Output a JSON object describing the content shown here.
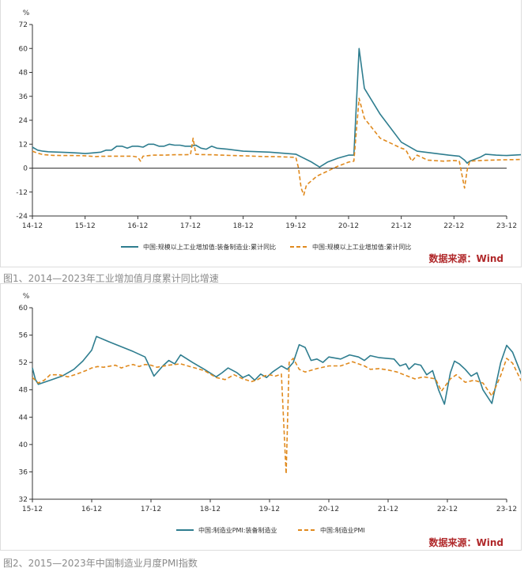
{
  "colors": {
    "equipment": "#2e7d8f",
    "overall": "#e08a1e",
    "source": "#b0282a",
    "caption": "#8a8a8a"
  },
  "figure1": {
    "caption": "图1、2014—2023年工业增加值月度累计同比增速",
    "source": "数据来源：Wind",
    "chart_data": {
      "type": "line",
      "unit": "%",
      "y_ticks": [
        72,
        60,
        48,
        36,
        24,
        12,
        0,
        -12,
        -24
      ],
      "ylim": [
        -24,
        72
      ],
      "x_ticks": [
        "14-12",
        "15-12",
        "16-12",
        "17-12",
        "18-12",
        "19-12",
        "20-12",
        "21-12",
        "22-12",
        "23-12"
      ],
      "grid": false,
      "legend_position": "bottom",
      "series": [
        {
          "name": "中国:规模以上工业增加值:装备制造业:累计同比",
          "style": "solid",
          "points": [
            [
              0.0,
              10.5
            ],
            [
              0.1,
              9.0
            ],
            [
              0.2,
              8.5
            ],
            [
              0.3,
              8.2
            ],
            [
              0.5,
              8.0
            ],
            [
              0.7,
              7.8
            ],
            [
              0.9,
              7.5
            ],
            [
              1.0,
              7.3
            ],
            [
              1.1,
              7.5
            ],
            [
              1.3,
              8.0
            ],
            [
              1.4,
              9.0
            ],
            [
              1.5,
              9.0
            ],
            [
              1.6,
              11.0
            ],
            [
              1.7,
              11.0
            ],
            [
              1.8,
              10.0
            ],
            [
              1.9,
              11.0
            ],
            [
              2.0,
              11.0
            ],
            [
              2.1,
              10.5
            ],
            [
              2.2,
              12.0
            ],
            [
              2.3,
              12.0
            ],
            [
              2.4,
              11.0
            ],
            [
              2.5,
              11.0
            ],
            [
              2.6,
              12.0
            ],
            [
              2.7,
              11.5
            ],
            [
              2.8,
              11.5
            ],
            [
              2.9,
              11.0
            ],
            [
              3.0,
              11.0
            ],
            [
              3.1,
              11.5
            ],
            [
              3.2,
              10.0
            ],
            [
              3.3,
              9.5
            ],
            [
              3.4,
              11.0
            ],
            [
              3.5,
              10.0
            ],
            [
              3.7,
              9.5
            ],
            [
              4.0,
              8.5
            ],
            [
              4.5,
              8.0
            ],
            [
              5.0,
              7.0
            ],
            [
              5.3,
              3.0
            ],
            [
              5.45,
              0.5
            ],
            [
              5.6,
              3.0
            ],
            [
              5.8,
              5.0
            ],
            [
              6.0,
              6.5
            ],
            [
              6.1,
              6.5
            ],
            [
              6.2,
              60.0
            ],
            [
              6.3,
              40.0
            ],
            [
              6.6,
              27.0
            ],
            [
              7.0,
              13.0
            ],
            [
              7.3,
              8.5
            ],
            [
              7.6,
              7.5
            ],
            [
              7.9,
              6.5
            ],
            [
              8.1,
              6.0
            ],
            [
              8.2,
              4.0
            ],
            [
              8.25,
              2.5
            ],
            [
              8.3,
              3.5
            ],
            [
              8.5,
              5.5
            ],
            [
              8.6,
              7.0
            ],
            [
              8.8,
              6.5
            ],
            [
              9.0,
              6.3
            ],
            [
              9.3,
              6.8
            ],
            [
              9.4,
              7.0
            ]
          ]
        },
        {
          "name": "中国:规模以上工业增加值:累计同比",
          "style": "dashed",
          "points": [
            [
              0.0,
              8.5
            ],
            [
              0.1,
              7.5
            ],
            [
              0.2,
              6.8
            ],
            [
              0.4,
              6.4
            ],
            [
              0.6,
              6.3
            ],
            [
              0.8,
              6.3
            ],
            [
              1.0,
              6.2
            ],
            [
              1.1,
              6.0
            ],
            [
              1.2,
              5.8
            ],
            [
              1.3,
              5.9
            ],
            [
              1.5,
              6.0
            ],
            [
              1.7,
              6.0
            ],
            [
              1.9,
              6.0
            ],
            [
              2.0,
              5.5
            ],
            [
              2.05,
              3.5
            ],
            [
              2.1,
              6.0
            ],
            [
              2.3,
              6.5
            ],
            [
              2.5,
              6.5
            ],
            [
              2.7,
              6.7
            ],
            [
              2.9,
              6.7
            ],
            [
              3.0,
              6.8
            ],
            [
              3.05,
              15.0
            ],
            [
              3.1,
              7.0
            ],
            [
              3.2,
              6.8
            ],
            [
              3.4,
              6.7
            ],
            [
              3.6,
              6.5
            ],
            [
              3.8,
              6.3
            ],
            [
              4.0,
              6.2
            ],
            [
              4.2,
              6.0
            ],
            [
              4.4,
              5.8
            ],
            [
              4.6,
              5.8
            ],
            [
              4.8,
              5.6
            ],
            [
              5.0,
              5.4
            ],
            [
              5.05,
              0.0
            ],
            [
              5.1,
              -10.0
            ],
            [
              5.15,
              -13.5
            ],
            [
              5.2,
              -8.5
            ],
            [
              5.4,
              -4.0
            ],
            [
              5.6,
              -1.5
            ],
            [
              5.8,
              1.0
            ],
            [
              6.0,
              3.0
            ],
            [
              6.1,
              3.5
            ],
            [
              6.2,
              35.0
            ],
            [
              6.3,
              25.0
            ],
            [
              6.6,
              15.0
            ],
            [
              7.0,
              10.0
            ],
            [
              7.05,
              9.6
            ],
            [
              7.1,
              8.5
            ],
            [
              7.2,
              3.5
            ],
            [
              7.3,
              6.5
            ],
            [
              7.5,
              4.0
            ],
            [
              7.8,
              3.5
            ],
            [
              8.0,
              3.8
            ],
            [
              8.1,
              3.6
            ],
            [
              8.2,
              -10.0
            ],
            [
              8.25,
              -1.0
            ],
            [
              8.3,
              3.5
            ],
            [
              8.5,
              3.8
            ],
            [
              8.7,
              4.0
            ],
            [
              9.0,
              4.2
            ],
            [
              9.2,
              4.3
            ],
            [
              9.4,
              4.5
            ]
          ]
        }
      ]
    }
  },
  "figure2": {
    "caption": "图2、2015—2023年中国制造业月度PMI指数",
    "source": "数据来源：Wind",
    "chart_data": {
      "type": "line",
      "unit": "%",
      "y_ticks": [
        60,
        56,
        52,
        48,
        44,
        40,
        36,
        32
      ],
      "ylim": [
        32,
        60
      ],
      "x_ticks": [
        "15-12",
        "16-12",
        "17-12",
        "18-12",
        "19-12",
        "20-12",
        "21-12",
        "22-12",
        "23-12"
      ],
      "grid": false,
      "legend_position": "bottom",
      "series": [
        {
          "name": "中国:制造业PMI:装备制造业",
          "style": "solid",
          "points": [
            [
              0.0,
              51.2
            ],
            [
              0.05,
              49.5
            ],
            [
              0.1,
              48.8
            ],
            [
              0.3,
              49.4
            ],
            [
              0.5,
              50.0
            ],
            [
              0.7,
              51.0
            ],
            [
              0.85,
              52.2
            ],
            [
              1.0,
              53.8
            ],
            [
              1.08,
              55.8
            ],
            [
              1.3,
              55.0
            ],
            [
              1.5,
              54.3
            ],
            [
              1.7,
              53.6
            ],
            [
              1.9,
              52.8
            ],
            [
              2.05,
              50.0
            ],
            [
              2.2,
              51.5
            ],
            [
              2.3,
              52.3
            ],
            [
              2.4,
              51.8
            ],
            [
              2.5,
              53.1
            ],
            [
              2.7,
              52.0
            ],
            [
              2.9,
              51.0
            ],
            [
              3.1,
              49.9
            ],
            [
              3.2,
              50.5
            ],
            [
              3.3,
              51.2
            ],
            [
              3.45,
              50.5
            ],
            [
              3.55,
              49.8
            ],
            [
              3.65,
              50.2
            ],
            [
              3.75,
              49.4
            ],
            [
              3.85,
              50.3
            ],
            [
              3.95,
              49.8
            ],
            [
              4.05,
              50.6
            ],
            [
              4.2,
              51.5
            ],
            [
              4.3,
              51.0
            ],
            [
              4.4,
              52.0
            ],
            [
              4.5,
              54.6
            ],
            [
              4.6,
              54.2
            ],
            [
              4.7,
              52.3
            ],
            [
              4.8,
              52.5
            ],
            [
              4.9,
              52.0
            ],
            [
              5.0,
              52.8
            ],
            [
              5.2,
              52.5
            ],
            [
              5.35,
              53.1
            ],
            [
              5.5,
              52.8
            ],
            [
              5.6,
              52.3
            ],
            [
              5.7,
              53.0
            ],
            [
              5.85,
              52.7
            ],
            [
              6.1,
              52.5
            ],
            [
              6.2,
              51.5
            ],
            [
              6.3,
              51.8
            ],
            [
              6.35,
              51.0
            ],
            [
              6.45,
              51.8
            ],
            [
              6.55,
              51.6
            ],
            [
              6.65,
              50.2
            ],
            [
              6.75,
              50.8
            ],
            [
              6.85,
              48.0
            ],
            [
              6.95,
              45.9
            ],
            [
              7.05,
              50.5
            ],
            [
              7.12,
              52.2
            ],
            [
              7.2,
              51.8
            ],
            [
              7.3,
              51.0
            ],
            [
              7.4,
              50.0
            ],
            [
              7.5,
              50.5
            ],
            [
              7.6,
              48.0
            ],
            [
              7.75,
              46.0
            ],
            [
              7.9,
              52.0
            ],
            [
              8.0,
              54.5
            ],
            [
              8.1,
              53.5
            ],
            [
              8.25,
              50.2
            ],
            [
              8.4,
              51.0
            ],
            [
              8.6,
              50.8
            ],
            [
              8.75,
              50.6
            ],
            [
              9.0,
              51.6
            ],
            [
              9.1,
              50.3
            ]
          ]
        },
        {
          "name": "中国:制造业PMI",
          "style": "dashed",
          "points": [
            [
              0.0,
              49.8
            ],
            [
              0.1,
              49.0
            ],
            [
              0.2,
              49.4
            ],
            [
              0.3,
              50.2
            ],
            [
              0.45,
              50.2
            ],
            [
              0.6,
              49.9
            ],
            [
              0.75,
              50.3
            ],
            [
              0.9,
              50.8
            ],
            [
              1.0,
              51.2
            ],
            [
              1.1,
              51.4
            ],
            [
              1.2,
              51.3
            ],
            [
              1.4,
              51.6
            ],
            [
              1.5,
              51.2
            ],
            [
              1.6,
              51.5
            ],
            [
              1.7,
              51.7
            ],
            [
              1.8,
              51.4
            ],
            [
              1.9,
              51.7
            ],
            [
              2.0,
              51.6
            ],
            [
              2.1,
              51.3
            ],
            [
              2.3,
              51.6
            ],
            [
              2.5,
              51.8
            ],
            [
              2.7,
              51.3
            ],
            [
              2.9,
              50.8
            ],
            [
              3.1,
              49.8
            ],
            [
              3.25,
              49.5
            ],
            [
              3.4,
              50.2
            ],
            [
              3.55,
              49.6
            ],
            [
              3.7,
              49.2
            ],
            [
              3.8,
              49.5
            ],
            [
              3.9,
              50.0
            ],
            [
              4.0,
              50.2
            ],
            [
              4.1,
              50.0
            ],
            [
              4.2,
              50.3
            ],
            [
              4.28,
              35.7
            ],
            [
              4.33,
              52.0
            ],
            [
              4.4,
              52.6
            ],
            [
              4.5,
              51.0
            ],
            [
              4.6,
              50.6
            ],
            [
              4.8,
              51.1
            ],
            [
              5.0,
              51.5
            ],
            [
              5.2,
              51.5
            ],
            [
              5.4,
              52.1
            ],
            [
              5.6,
              51.5
            ],
            [
              5.7,
              51.0
            ],
            [
              5.85,
              51.1
            ],
            [
              6.0,
              50.9
            ],
            [
              6.15,
              50.6
            ],
            [
              6.3,
              50.1
            ],
            [
              6.45,
              49.6
            ],
            [
              6.6,
              49.9
            ],
            [
              6.8,
              49.6
            ],
            [
              6.9,
              47.8
            ],
            [
              7.05,
              49.6
            ],
            [
              7.15,
              50.2
            ],
            [
              7.3,
              49.1
            ],
            [
              7.45,
              49.4
            ],
            [
              7.6,
              49.0
            ],
            [
              7.75,
              47.1
            ],
            [
              7.9,
              50.1
            ],
            [
              8.0,
              52.6
            ],
            [
              8.1,
              51.9
            ],
            [
              8.25,
              49.2
            ],
            [
              8.4,
              48.8
            ],
            [
              8.6,
              49.3
            ],
            [
              8.8,
              49.9
            ],
            [
              8.9,
              49.5
            ],
            [
              9.1,
              49.0
            ]
          ]
        }
      ]
    }
  }
}
